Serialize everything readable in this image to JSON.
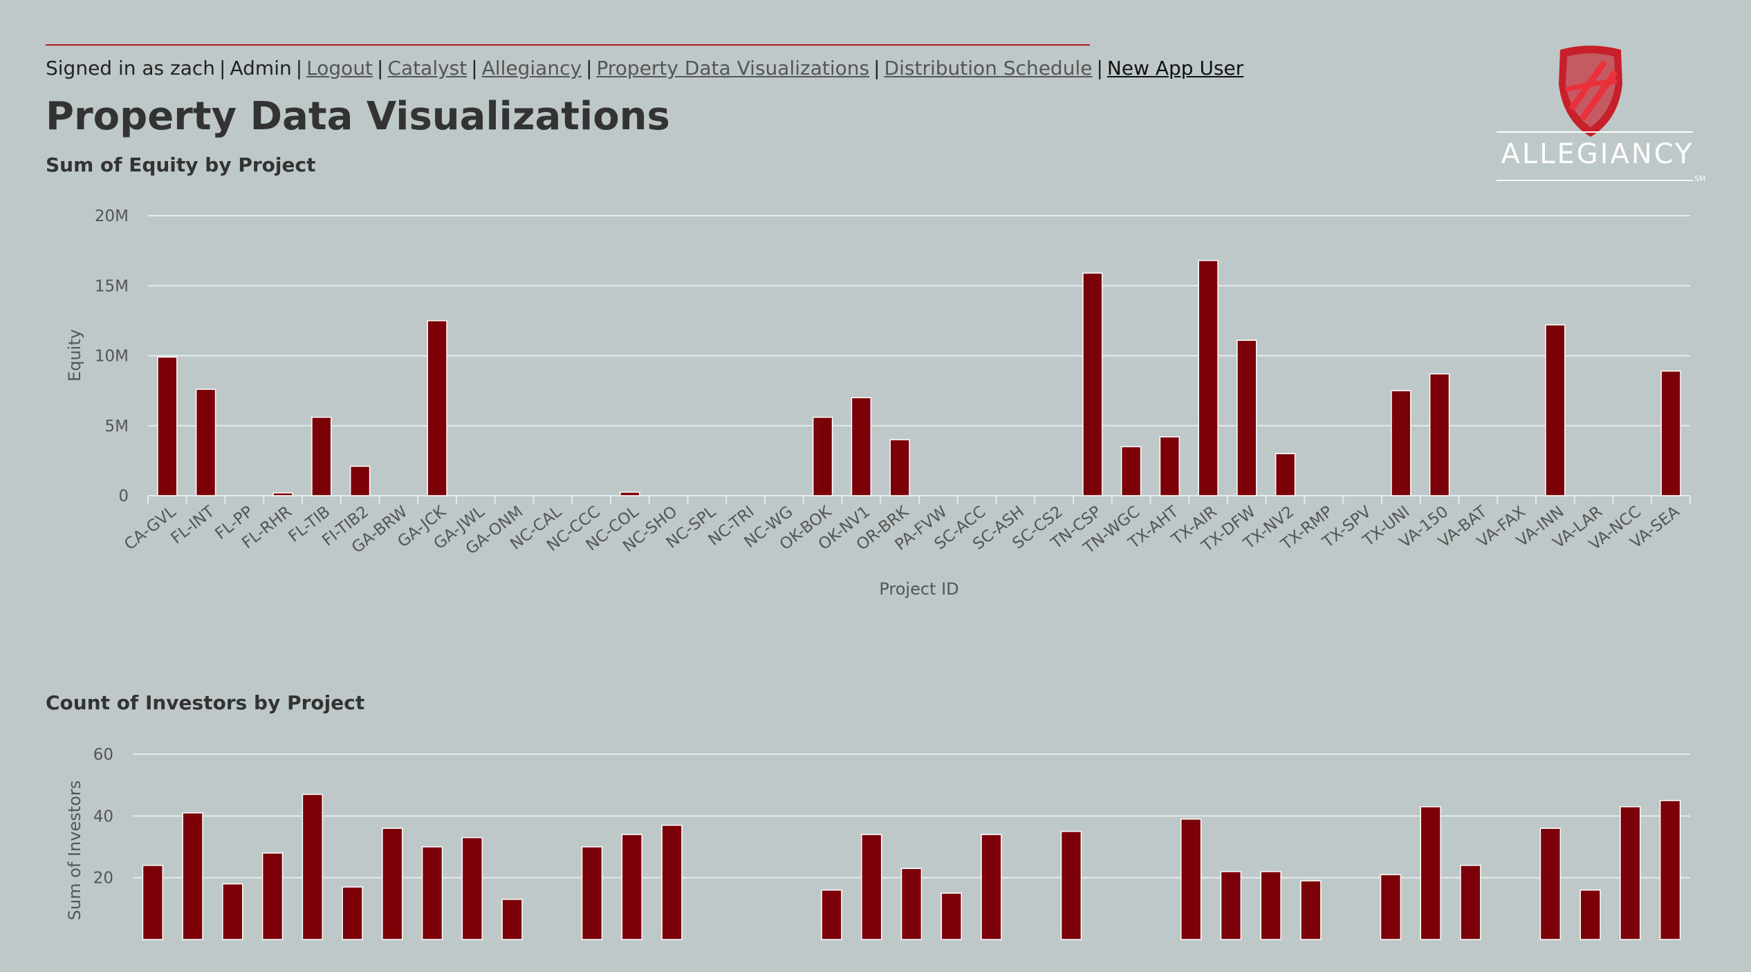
{
  "nav": {
    "signed_in": "Signed in as zach",
    "role": "Admin",
    "links": [
      "Logout",
      "Catalyst",
      "Allegiancy",
      "Property Data Visualizations",
      "Distribution Schedule",
      "New App User"
    ]
  },
  "page": {
    "title": "Property Data Visualizations"
  },
  "logo": {
    "text": "ALLEGIANCY",
    "mark": "SM"
  },
  "colors": {
    "bar": "#7b0008",
    "background": "#bfc8c9",
    "accent": "#b01c24"
  },
  "chart_data": [
    {
      "type": "bar",
      "title": "Sum of Equity by Project",
      "xlabel": "Project ID",
      "ylabel": "Equity",
      "ylim": [
        0,
        20000000
      ],
      "y_ticks": [
        0,
        5000000,
        10000000,
        15000000,
        20000000
      ],
      "y_tick_labels": [
        "0",
        "5M",
        "10M",
        "15M",
        "20M"
      ],
      "grid": true,
      "categories": [
        "CA-GVL",
        "FL-INT",
        "FL-PP",
        "FL-RHR",
        "FL-TIB",
        "FI-TIB2",
        "GA-BRW",
        "GA-JCK",
        "GA-JWL",
        "GA-ONM",
        "NC-CAL",
        "NC-CCC",
        "NC-COL",
        "NC-SHO",
        "NC-SPL",
        "NC-TRI",
        "NC-WG",
        "OK-BOK",
        "OK-NV1",
        "OR-BRK",
        "PA-FVW",
        "SC-ACC",
        "SC-ASH",
        "SC-CS2",
        "TN-CSP",
        "TN-WGC",
        "TX-AHT",
        "TX-AIR",
        "TX-DFW",
        "TX-NV2",
        "TX-RMP",
        "TX-SPV",
        "TX-UNI",
        "VA-150",
        "VA-BAT",
        "VA-FAX",
        "VA-INN",
        "VA-LAR",
        "VA-NCC",
        "VA-SEA"
      ],
      "values": [
        9900000,
        7600000,
        0,
        200000,
        5600000,
        2100000,
        0,
        12500000,
        0,
        0,
        0,
        0,
        250000,
        0,
        0,
        0,
        0,
        5600000,
        7000000,
        4000000,
        0,
        0,
        0,
        0,
        15900000,
        3500000,
        4200000,
        16800000,
        11100000,
        3000000,
        0,
        0,
        7500000,
        8700000,
        0,
        0,
        12200000,
        0,
        0,
        8900000
      ]
    },
    {
      "type": "bar",
      "title": "Count of Investors by Project",
      "xlabel": "",
      "ylabel": "Sum of Investors",
      "ylim": [
        0,
        60
      ],
      "y_ticks": [
        20,
        40,
        60
      ],
      "y_tick_labels": [
        "20",
        "40",
        "60"
      ],
      "grid": true,
      "values": [
        24,
        41,
        18,
        28,
        47,
        17,
        36,
        30,
        33,
        13,
        0,
        30,
        34,
        37,
        0,
        0,
        0,
        16,
        34,
        23,
        15,
        34,
        0,
        35,
        0,
        0,
        39,
        22,
        22,
        19,
        0,
        21,
        43,
        24,
        0,
        36,
        16,
        43,
        45
      ]
    }
  ]
}
